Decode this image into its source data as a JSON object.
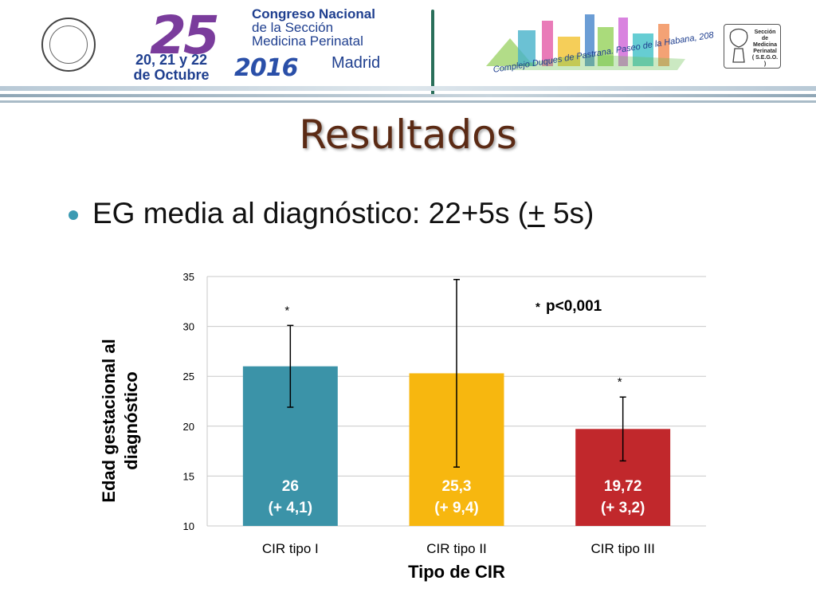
{
  "header": {
    "conference_number": "25",
    "dates": "20, 21 y 22 de Octubre",
    "conference_title": "Congreso Nacional",
    "conference_subtitle_1": "de la Sección",
    "conference_subtitle_2": "Medicina Perinatal",
    "year": "2016",
    "city": "Madrid",
    "venue": "Complejo Duques de Pastrana. Paseo de la Habana, 208",
    "section_logo_text": "Sección de Medicina Perinatal",
    "section_logo_sub": "( S.E.G.O. )",
    "seal_text": "S.E.G.O."
  },
  "slide": {
    "title": "Resultados",
    "bullet_prefix": "EG media al diagnóstico: 22+5s (",
    "bullet_pm": "+",
    "bullet_suffix": " 5s)"
  },
  "chart_data": {
    "type": "bar",
    "categories": [
      "CIR tipo I",
      "CIR tipo II",
      "CIR tipo III"
    ],
    "values": [
      26,
      25.3,
      19.72
    ],
    "error_bars": [
      4.1,
      9.4,
      3.2
    ],
    "value_labels": [
      "26",
      "25,3",
      "19,72"
    ],
    "error_labels": [
      "(+ 4,1)",
      "(+ 9,4)",
      "(+ 3,2)"
    ],
    "colors": [
      "#3b93a8",
      "#f7b70f",
      "#c1282c"
    ],
    "significance_marks": [
      "*",
      "",
      "*"
    ],
    "annotation": "p<0,001",
    "annotation_mark": "*",
    "xlabel": "Tipo de CIR",
    "ylabel_line1": "Edad gestacional al",
    "ylabel_line2": "diagnóstico",
    "ylim": [
      10,
      35
    ],
    "yticks": [
      10,
      15,
      20,
      25,
      30,
      35
    ],
    "grid": true
  }
}
